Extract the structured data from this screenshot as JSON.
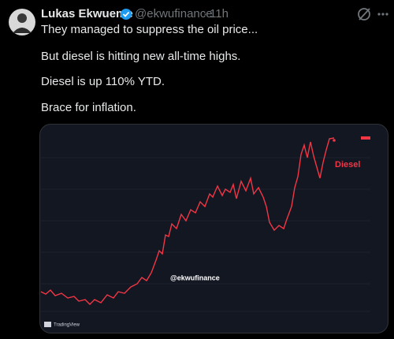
{
  "tweet": {
    "author": "Lukas Ekwueme",
    "handle": "@ekwufinance",
    "separator": "·",
    "time": "11h",
    "lines": [
      "They managed to suppress the oil price...",
      "But diesel is hitting new all-time highs.",
      "Diesel is up 110% YTD.",
      "Brace for inflation."
    ]
  },
  "image": {
    "label": "Diesel",
    "watermark": "@ekwufinance",
    "brand": "TradingView"
  }
}
